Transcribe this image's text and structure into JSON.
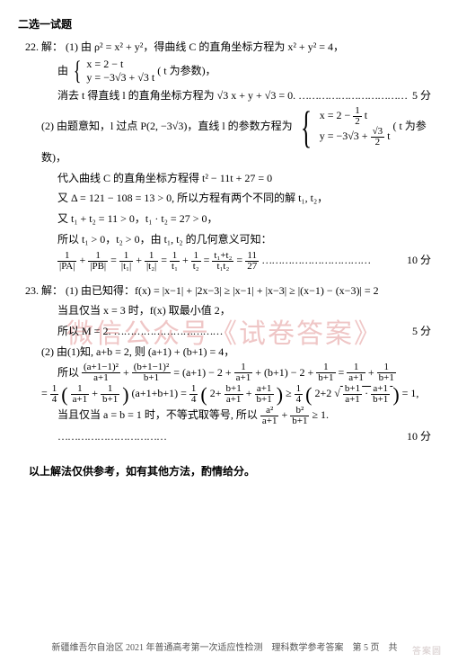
{
  "section_title": "二选一试题",
  "problems": {
    "p22": {
      "label": "22. 解：",
      "part1": {
        "l1": "(1) 由 ρ² = x² + y²，得曲线 C 的直角坐标方程为 x² + y² = 4，",
        "l2_prefix": "由",
        "brace_top": "x = 2 − t",
        "brace_bot": "y = −3√3 + √3 t",
        "l2_suffix": "( t 为参数)，",
        "l3": "消去 t 得直线 l 的直角坐标方程为 √3 x + y + √3 = 0.",
        "score": "5 分"
      },
      "part2": {
        "l1_prefix": "(2) 由题意知，l 过点 P(2, −3√3)，直线 l 的参数方程为",
        "brace_top_a": "x = 2 −",
        "brace_top_frac_n": "1",
        "brace_top_frac_d": "2",
        "brace_top_b": " t",
        "brace_bot_a": "y = −3√3 + ",
        "brace_bot_frac_n": "√3",
        "brace_bot_frac_d": "2",
        "brace_bot_b": " t",
        "l1_suffix": "( t 为参数)，",
        "l2": "代入曲线 C 的直角坐标方程得 t² − 11t + 27 = 0",
        "l3": "又 Δ = 121 − 108 = 13 > 0, 所以方程有两个不同的解 t₁, t₂，",
        "l4": "又 t₁ + t₂ = 11 > 0，t₁ · t₂ = 27 > 0，",
        "l5": "所以 t₁ > 0，t₂ > 0，由 t₁, t₂ 的几何意义可知：",
        "l6_a": "1",
        "l6_b": "|PA|",
        "l6_c": "1",
        "l6_d": "|PB|",
        "l6_e": "1",
        "l6_f": "|t₁|",
        "l6_g": "1",
        "l6_h": "|t₂|",
        "l6_i": "1",
        "l6_j": "t₁",
        "l6_k": "1",
        "l6_l": "t₂",
        "l6_m": "t₁+t₂",
        "l6_n": "t₁t₂",
        "l6_o": "11",
        "l6_p": "27",
        "score": "10 分"
      }
    },
    "p23": {
      "label": "23. 解：",
      "part1": {
        "l1": "(1) 由已知得：f(x) = |x−1| + |2x−3| ≥ |x−1| + |x−3| ≥ |(x−1) − (x−3)| = 2",
        "l2": "当且仅当 x = 3 时，f(x) 取最小值 2，",
        "l3": "所以 M = 2.",
        "score": "5 分"
      },
      "part2": {
        "l1": "(2) 由(1)知, a+b = 2, 则 (a+1) + (b+1) = 4，",
        "l2_pre": "所以 ",
        "l2_f1n": "(a+1−1)²",
        "l2_f1d": "a+1",
        "l2_f2n": "(b+1−1)²",
        "l2_f2d": "b+1",
        "l2_mid": " = (a+1) − 2 + ",
        "l2_f3n": "1",
        "l2_f3d": "a+1",
        "l2_mid2": " + (b+1) − 2 + ",
        "l2_f4n": "1",
        "l2_f4d": "b+1",
        "l2_eq": " = ",
        "l2_f5n": "1",
        "l2_f5d": "a+1",
        "l2_f6n": "1",
        "l2_f6d": "b+1",
        "l3_pre": "= ",
        "l3_f1n": "1",
        "l3_f1d": "4",
        "l3_p1a": "1",
        "l3_p1b": "a+1",
        "l3_p1c": "1",
        "l3_p1d": "b+1",
        "l3_mid1": " (a+1+b+1) = ",
        "l3_f2n": "1",
        "l3_f2d": "4",
        "l3_p2a": "2+",
        "l3_p2bn": "b+1",
        "l3_p2bd": "a+1",
        "l3_p2cn": "a+1",
        "l3_p2cd": "b+1",
        "l3_geq": " ≥ ",
        "l3_f3n": "1",
        "l3_f3d": "4",
        "l3_p3a": "2+2",
        "l3_p3bn": "b+1",
        "l3_p3bd": "a+1",
        "l3_p3cn": "a+1",
        "l3_p3cd": "b+1",
        "l3_end": " = 1,",
        "l4_pre": "当且仅当 a = b = 1 时，不等式取等号, 所以 ",
        "l4_f1n": "a²",
        "l4_f1d": "a+1",
        "l4_f2n": "b²",
        "l4_f2d": "b+1",
        "l4_end": " ≥ 1.",
        "score": "10 分"
      }
    }
  },
  "note": "以上解法仅供参考，如有其他方法，酌情给分。",
  "watermark": "微信公众号《试卷答案》",
  "footer": "新疆维吾尔自治区 2021 年普通高考第一次适应性检测　理科数学参考答案　第 5 页　共",
  "corner": "答案圆"
}
